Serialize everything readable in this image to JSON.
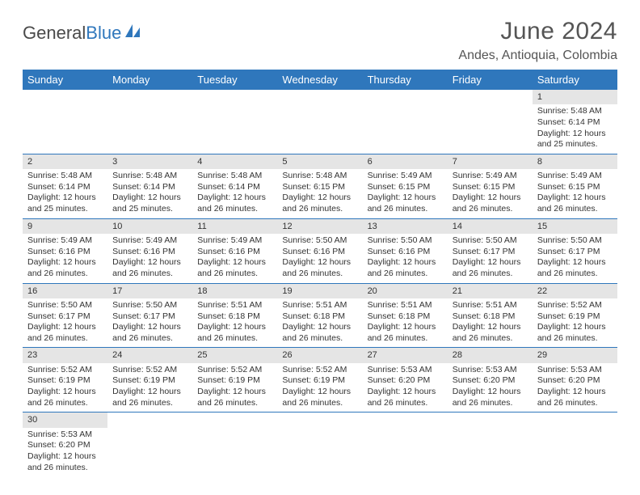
{
  "brand": {
    "part1": "General",
    "part2": "Blue"
  },
  "title": "June 2024",
  "location": "Andes, Antioquia, Colombia",
  "colors": {
    "header_bg": "#2f77bc",
    "header_text": "#ffffff",
    "daynum_bg": "#e5e5e5",
    "text": "#333333",
    "border": "#2f77bc",
    "page_bg": "#ffffff"
  },
  "fonts": {
    "title_size": 30,
    "location_size": 16,
    "dayhead_size": 13,
    "cell_size": 10.5
  },
  "day_headers": [
    "Sunday",
    "Monday",
    "Tuesday",
    "Wednesday",
    "Thursday",
    "Friday",
    "Saturday"
  ],
  "weeks": [
    [
      {
        "num": "",
        "lines": []
      },
      {
        "num": "",
        "lines": []
      },
      {
        "num": "",
        "lines": []
      },
      {
        "num": "",
        "lines": []
      },
      {
        "num": "",
        "lines": []
      },
      {
        "num": "",
        "lines": []
      },
      {
        "num": "1",
        "lines": [
          "Sunrise: 5:48 AM",
          "Sunset: 6:14 PM",
          "Daylight: 12 hours",
          "and 25 minutes."
        ]
      }
    ],
    [
      {
        "num": "2",
        "lines": [
          "Sunrise: 5:48 AM",
          "Sunset: 6:14 PM",
          "Daylight: 12 hours",
          "and 25 minutes."
        ]
      },
      {
        "num": "3",
        "lines": [
          "Sunrise: 5:48 AM",
          "Sunset: 6:14 PM",
          "Daylight: 12 hours",
          "and 25 minutes."
        ]
      },
      {
        "num": "4",
        "lines": [
          "Sunrise: 5:48 AM",
          "Sunset: 6:14 PM",
          "Daylight: 12 hours",
          "and 26 minutes."
        ]
      },
      {
        "num": "5",
        "lines": [
          "Sunrise: 5:48 AM",
          "Sunset: 6:15 PM",
          "Daylight: 12 hours",
          "and 26 minutes."
        ]
      },
      {
        "num": "6",
        "lines": [
          "Sunrise: 5:49 AM",
          "Sunset: 6:15 PM",
          "Daylight: 12 hours",
          "and 26 minutes."
        ]
      },
      {
        "num": "7",
        "lines": [
          "Sunrise: 5:49 AM",
          "Sunset: 6:15 PM",
          "Daylight: 12 hours",
          "and 26 minutes."
        ]
      },
      {
        "num": "8",
        "lines": [
          "Sunrise: 5:49 AM",
          "Sunset: 6:15 PM",
          "Daylight: 12 hours",
          "and 26 minutes."
        ]
      }
    ],
    [
      {
        "num": "9",
        "lines": [
          "Sunrise: 5:49 AM",
          "Sunset: 6:16 PM",
          "Daylight: 12 hours",
          "and 26 minutes."
        ]
      },
      {
        "num": "10",
        "lines": [
          "Sunrise: 5:49 AM",
          "Sunset: 6:16 PM",
          "Daylight: 12 hours",
          "and 26 minutes."
        ]
      },
      {
        "num": "11",
        "lines": [
          "Sunrise: 5:49 AM",
          "Sunset: 6:16 PM",
          "Daylight: 12 hours",
          "and 26 minutes."
        ]
      },
      {
        "num": "12",
        "lines": [
          "Sunrise: 5:50 AM",
          "Sunset: 6:16 PM",
          "Daylight: 12 hours",
          "and 26 minutes."
        ]
      },
      {
        "num": "13",
        "lines": [
          "Sunrise: 5:50 AM",
          "Sunset: 6:16 PM",
          "Daylight: 12 hours",
          "and 26 minutes."
        ]
      },
      {
        "num": "14",
        "lines": [
          "Sunrise: 5:50 AM",
          "Sunset: 6:17 PM",
          "Daylight: 12 hours",
          "and 26 minutes."
        ]
      },
      {
        "num": "15",
        "lines": [
          "Sunrise: 5:50 AM",
          "Sunset: 6:17 PM",
          "Daylight: 12 hours",
          "and 26 minutes."
        ]
      }
    ],
    [
      {
        "num": "16",
        "lines": [
          "Sunrise: 5:50 AM",
          "Sunset: 6:17 PM",
          "Daylight: 12 hours",
          "and 26 minutes."
        ]
      },
      {
        "num": "17",
        "lines": [
          "Sunrise: 5:50 AM",
          "Sunset: 6:17 PM",
          "Daylight: 12 hours",
          "and 26 minutes."
        ]
      },
      {
        "num": "18",
        "lines": [
          "Sunrise: 5:51 AM",
          "Sunset: 6:18 PM",
          "Daylight: 12 hours",
          "and 26 minutes."
        ]
      },
      {
        "num": "19",
        "lines": [
          "Sunrise: 5:51 AM",
          "Sunset: 6:18 PM",
          "Daylight: 12 hours",
          "and 26 minutes."
        ]
      },
      {
        "num": "20",
        "lines": [
          "Sunrise: 5:51 AM",
          "Sunset: 6:18 PM",
          "Daylight: 12 hours",
          "and 26 minutes."
        ]
      },
      {
        "num": "21",
        "lines": [
          "Sunrise: 5:51 AM",
          "Sunset: 6:18 PM",
          "Daylight: 12 hours",
          "and 26 minutes."
        ]
      },
      {
        "num": "22",
        "lines": [
          "Sunrise: 5:52 AM",
          "Sunset: 6:19 PM",
          "Daylight: 12 hours",
          "and 26 minutes."
        ]
      }
    ],
    [
      {
        "num": "23",
        "lines": [
          "Sunrise: 5:52 AM",
          "Sunset: 6:19 PM",
          "Daylight: 12 hours",
          "and 26 minutes."
        ]
      },
      {
        "num": "24",
        "lines": [
          "Sunrise: 5:52 AM",
          "Sunset: 6:19 PM",
          "Daylight: 12 hours",
          "and 26 minutes."
        ]
      },
      {
        "num": "25",
        "lines": [
          "Sunrise: 5:52 AM",
          "Sunset: 6:19 PM",
          "Daylight: 12 hours",
          "and 26 minutes."
        ]
      },
      {
        "num": "26",
        "lines": [
          "Sunrise: 5:52 AM",
          "Sunset: 6:19 PM",
          "Daylight: 12 hours",
          "and 26 minutes."
        ]
      },
      {
        "num": "27",
        "lines": [
          "Sunrise: 5:53 AM",
          "Sunset: 6:20 PM",
          "Daylight: 12 hours",
          "and 26 minutes."
        ]
      },
      {
        "num": "28",
        "lines": [
          "Sunrise: 5:53 AM",
          "Sunset: 6:20 PM",
          "Daylight: 12 hours",
          "and 26 minutes."
        ]
      },
      {
        "num": "29",
        "lines": [
          "Sunrise: 5:53 AM",
          "Sunset: 6:20 PM",
          "Daylight: 12 hours",
          "and 26 minutes."
        ]
      }
    ],
    [
      {
        "num": "30",
        "lines": [
          "Sunrise: 5:53 AM",
          "Sunset: 6:20 PM",
          "Daylight: 12 hours",
          "and 26 minutes."
        ]
      },
      {
        "num": "",
        "lines": []
      },
      {
        "num": "",
        "lines": []
      },
      {
        "num": "",
        "lines": []
      },
      {
        "num": "",
        "lines": []
      },
      {
        "num": "",
        "lines": []
      },
      {
        "num": "",
        "lines": []
      }
    ]
  ]
}
